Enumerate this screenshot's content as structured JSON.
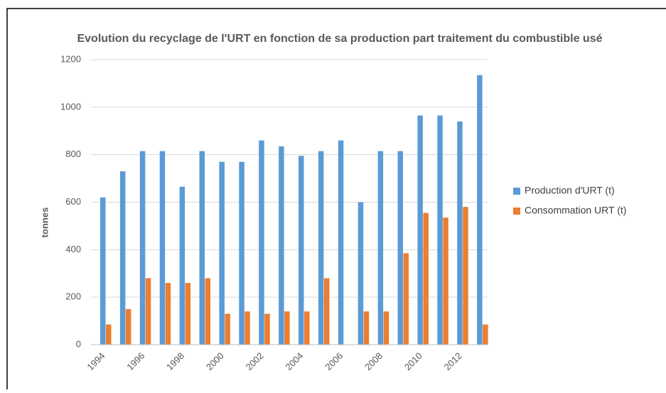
{
  "chart_data": {
    "type": "bar",
    "title": "Evolution du recyclage de l'URT en fonction de sa production part traitement du combustible usé",
    "y_label": "tonnes",
    "categories": [
      "1994",
      null,
      "1996",
      null,
      "1998",
      null,
      "2000",
      null,
      "2002",
      null,
      "2004",
      null,
      "2006",
      null,
      "2008",
      null,
      "2010",
      null,
      "2012",
      null
    ],
    "series": [
      {
        "name": "Production d'URT (t)",
        "color": "#5b9bd5",
        "values": [
          620,
          730,
          815,
          815,
          665,
          815,
          770,
          770,
          860,
          835,
          795,
          815,
          860,
          600,
          815,
          815,
          965,
          965,
          940,
          1135
        ]
      },
      {
        "name": "Consommation URT (t)",
        "color": "#ed7d31",
        "values": [
          85,
          150,
          280,
          260,
          260,
          280,
          130,
          140,
          130,
          140,
          140,
          280,
          0,
          140,
          140,
          385,
          555,
          535,
          580,
          85
        ]
      }
    ],
    "ylim": [
      0,
      1200
    ],
    "yticks": [
      0,
      200,
      400,
      600,
      800,
      1000,
      1200
    ],
    "grid": true,
    "legend": "right"
  }
}
